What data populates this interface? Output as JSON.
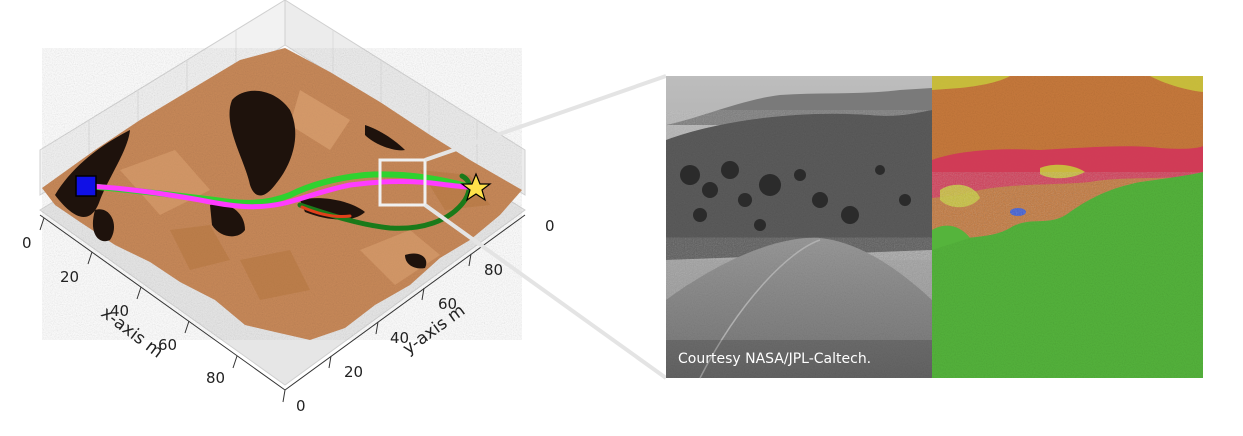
{
  "plot": {
    "x_axis_label": "x-axis m",
    "y_axis_label": "y-axis m",
    "x_ticks": [
      "0",
      "20",
      "40",
      "60",
      "80"
    ],
    "y_ticks": [
      "0",
      "20",
      "40",
      "60",
      "80"
    ],
    "z_ticks": [
      "0"
    ],
    "colors": {
      "terrain": "#c98a5a",
      "terrain_dark": "#a96a40",
      "hazard": "#1e120c",
      "path_magenta": "#ff3cff",
      "path_green_light": "#2fd22f",
      "path_green_dark": "#1a7a1a",
      "path_red": "#e0401a",
      "start_marker": "#1010e6",
      "goal_marker": "#ffe24a"
    },
    "markers": [
      "start-square",
      "goal-star"
    ]
  },
  "photo": {
    "credit": "Courtesy NASA/JPL-Caltech.",
    "segmentation_colors": {
      "sand": "#55b43c",
      "soil": "#c87a3c",
      "rock_hazard": "#d2355a",
      "gravel": "#c8c83c",
      "blue_patch": "#3c5ad2"
    }
  }
}
